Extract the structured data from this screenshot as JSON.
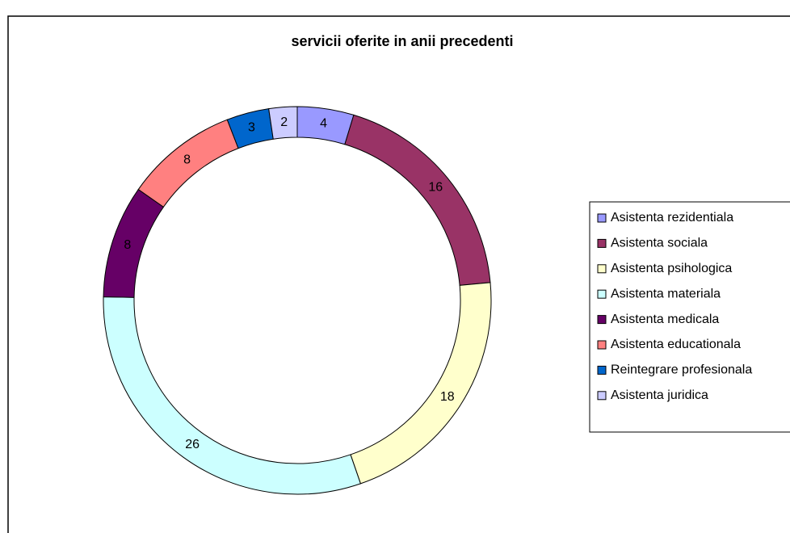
{
  "chart_data": {
    "type": "donut",
    "title": "servicii oferite in anii precedenti",
    "categories": [
      "Asistenta rezidentiala",
      "Asistenta sociala",
      "Asistenta psihologica",
      "Asistenta materiala",
      "Asistenta medicala",
      "Asistenta educationala",
      "Reintegrare profesionala",
      "Asistenta juridica"
    ],
    "values": [
      4,
      16,
      18,
      26,
      8,
      8,
      3,
      2
    ],
    "colors": [
      "#9999ff",
      "#993366",
      "#ffffcc",
      "#ccffff",
      "#660066",
      "#ff8080",
      "#0066cc",
      "#ccccff"
    ],
    "legend": "right"
  }
}
